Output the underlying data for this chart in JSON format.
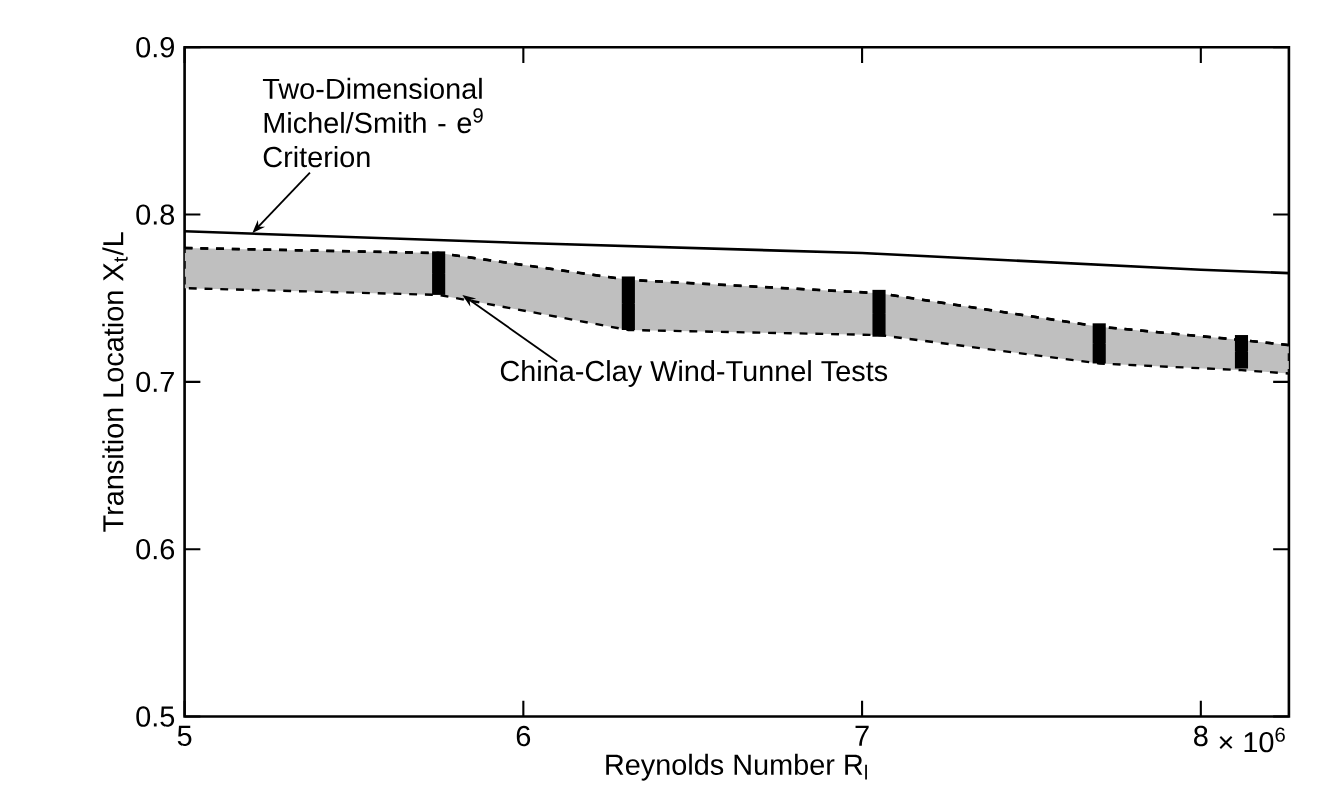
{
  "chart_data": {
    "type": "line",
    "xlabel": "Reynolds Number R$_{l}$",
    "ylabel": "Transition Location X$_{t}$/L",
    "xlim": [
      5,
      8.26
    ],
    "ylim": [
      0.5,
      0.9
    ],
    "xticks": [
      5,
      6,
      7,
      8
    ],
    "yticks": [
      0.5,
      0.6,
      0.7,
      0.8,
      0.9
    ],
    "series": [
      {
        "color": "#000000",
        "x": [
          5,
          6,
          7,
          8,
          8.26
        ],
        "values": [
          0.79,
          0.783,
          0.777,
          0.767,
          0.765
        ]
      },
      {
        "color": "#000000",
        "line_style": "dashed",
        "x": [
          5,
          5.75,
          6.31,
          7.05,
          7.7,
          8.12,
          8.26
        ],
        "values": [
          0.78,
          0.777,
          0.761,
          0.753,
          0.733,
          0.725,
          0.722
        ],
        "lower": [
          0.756,
          0.752,
          0.731,
          0.728,
          0.711,
          0.707,
          0.705
        ],
        "upper": [
          0.78,
          0.777,
          0.761,
          0.753,
          0.733,
          0.725,
          0.722
        ]
      },
      {
        "type": "scatter",
        "color": "#000000",
        "x": [
          5.75,
          6.31,
          7.05,
          7.7,
          8.12
        ],
        "values": [
          0.765,
          0.747,
          0.741,
          0.723,
          0.718
        ],
        "errors": [
          0.013,
          0.016,
          0.014,
          0.012,
          0.01
        ]
      }
    ],
    "annotations": [
      "Two-Dimensional Michel/Smith - e$^{9}$ Criterion",
      {
        "text": "China-Clay Wind-Tunnel Tests",
        "x": 5.82,
        "y": 0.752
      },
      "× 10$^{6}$"
    ]
  }
}
